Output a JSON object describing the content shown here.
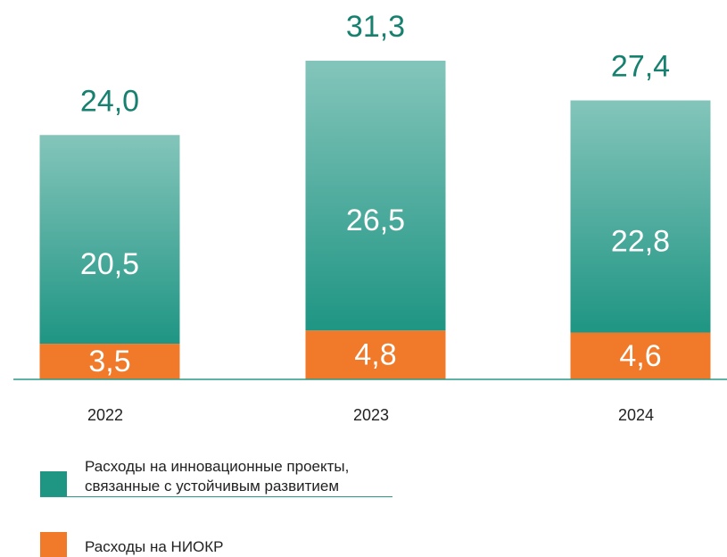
{
  "chart_data": {
    "type": "stacked_bar",
    "categories": [
      "2022",
      "2023",
      "2024"
    ],
    "series": [
      {
        "name": "Расходы на НИОКР",
        "color": "#f07a2a",
        "values": [
          3.5,
          4.8,
          4.6
        ],
        "value_labels": [
          "3,5",
          "4,8",
          "4,6"
        ]
      },
      {
        "name": "Расходы на инновационные проекты, связанные с устойчивым развитием",
        "color": "#1f9583",
        "values": [
          20.5,
          26.5,
          22.8
        ],
        "value_labels": [
          "20,5",
          "26,5",
          "22,8"
        ]
      }
    ],
    "totals": [
      24.0,
      31.3,
      27.4
    ],
    "total_labels": [
      "24,0",
      "31,3",
      "27,4"
    ],
    "ylim": [
      0,
      37
    ]
  }
}
